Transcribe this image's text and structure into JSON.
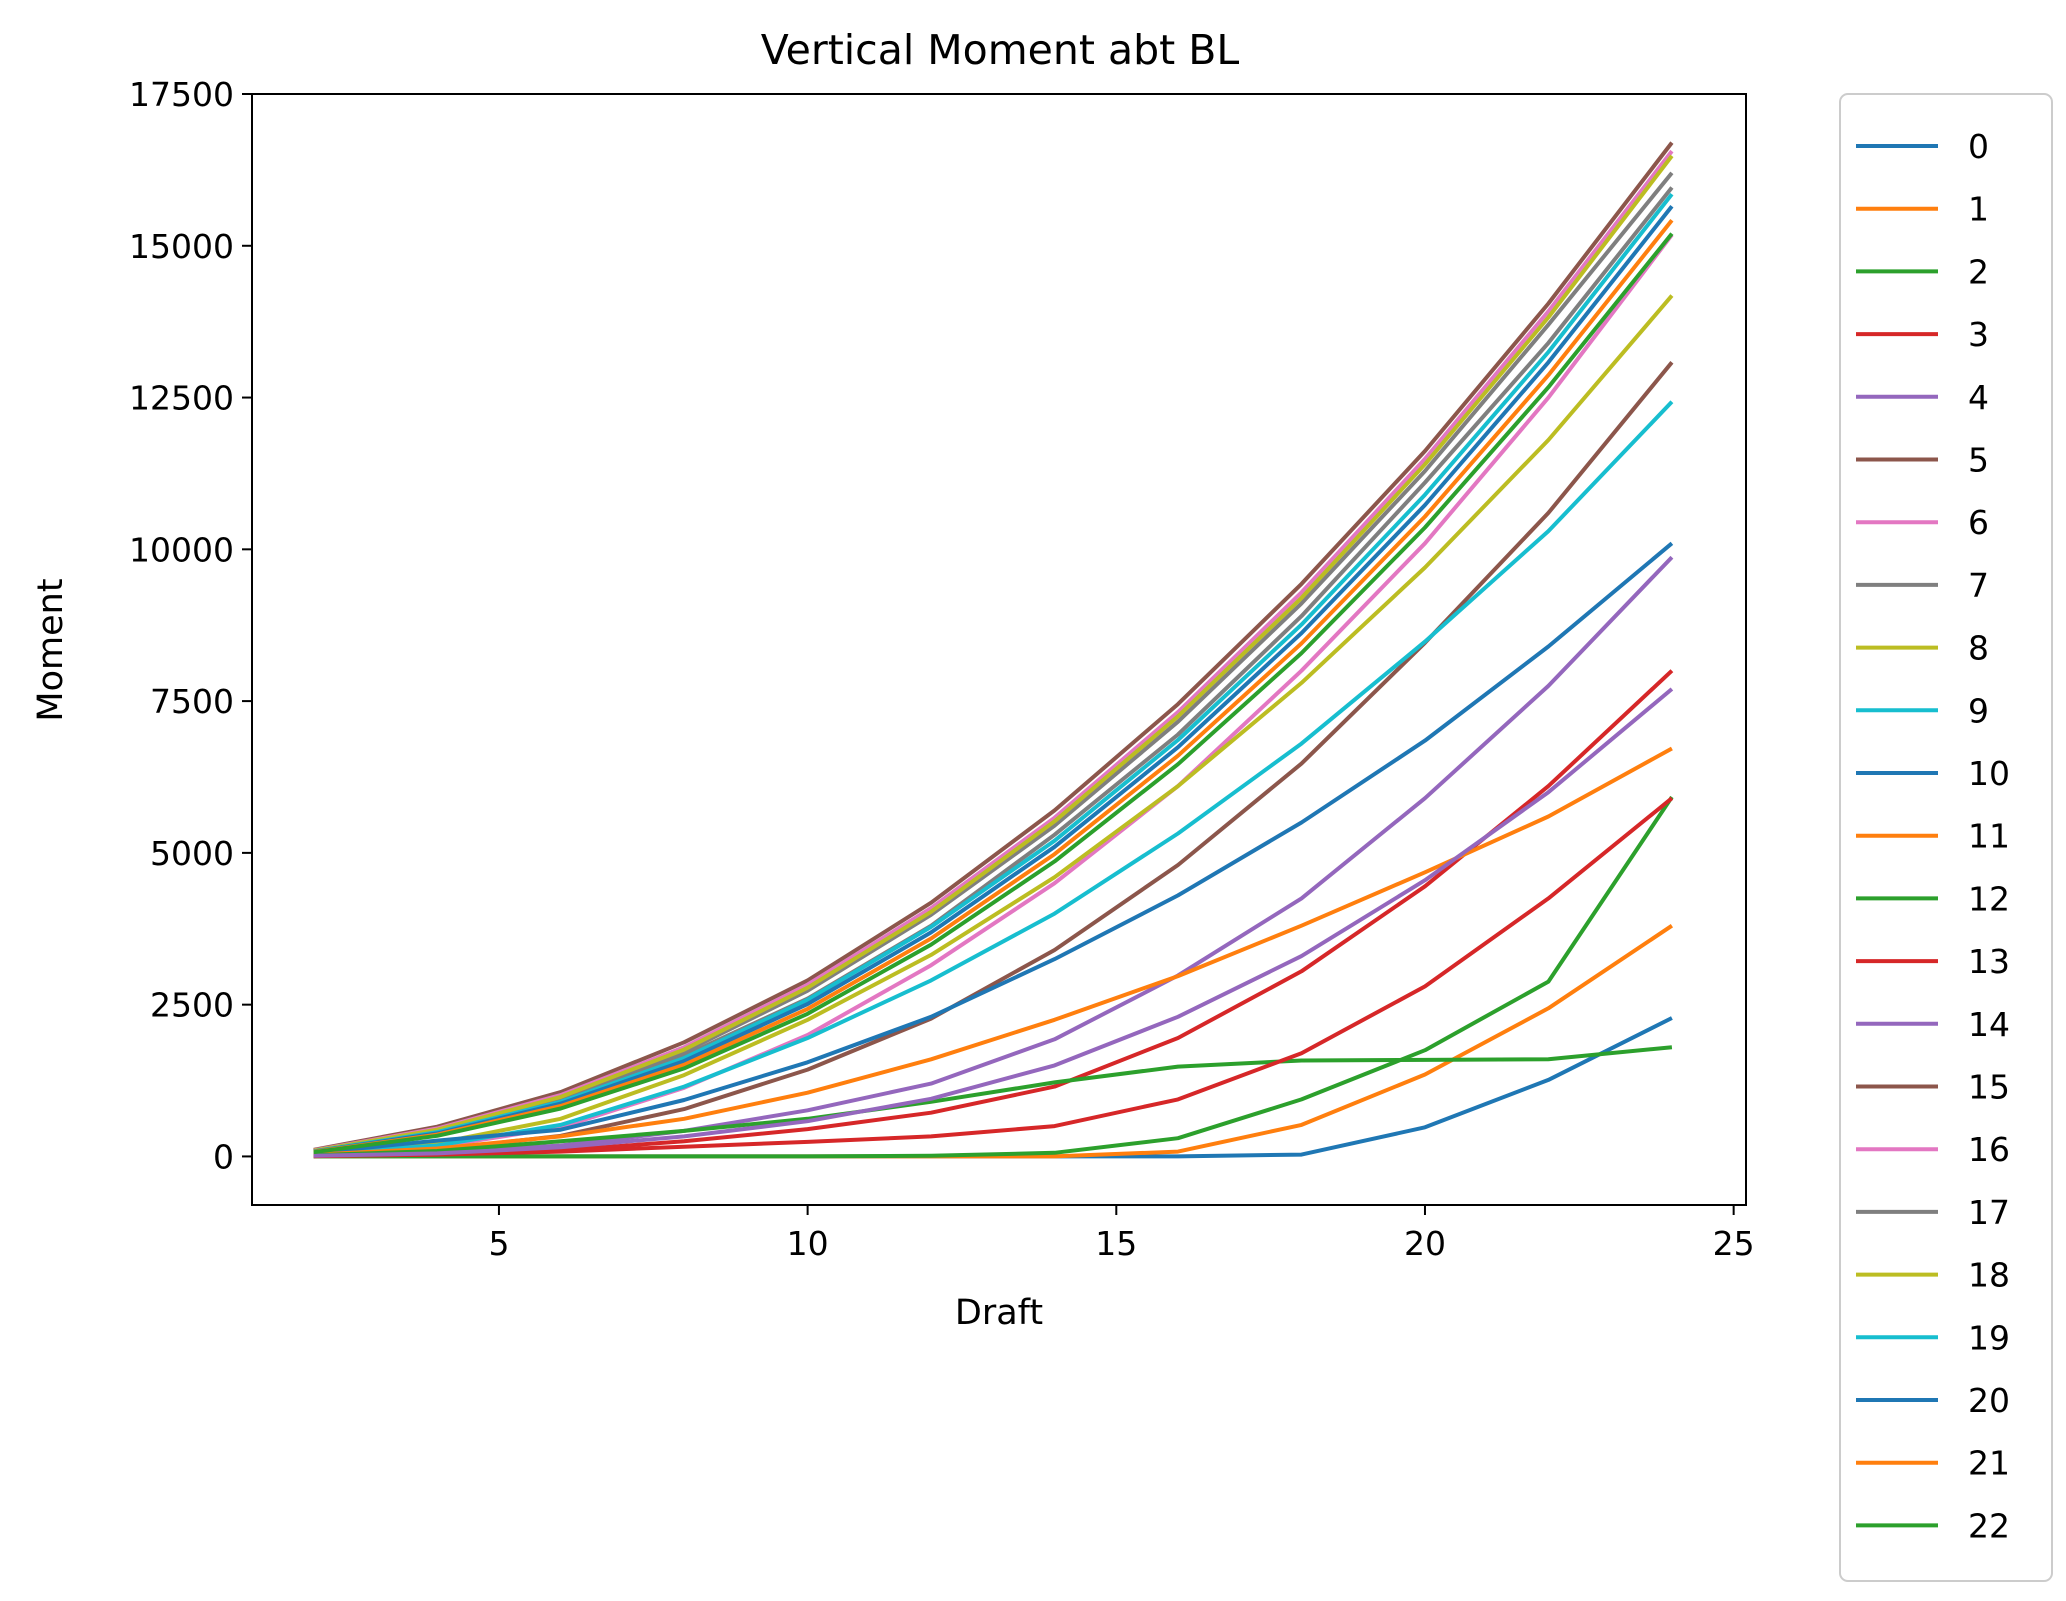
{
  "chart_data": {
    "type": "line",
    "title": "Vertical Moment abt BL",
    "xlabel": "Draft",
    "ylabel": "Moment",
    "xlim": [
      1,
      25.2
    ],
    "ylim": [
      -800,
      17500
    ],
    "xticks": [
      5,
      10,
      15,
      20,
      25
    ],
    "yticks": [
      0,
      2500,
      5000,
      7500,
      10000,
      12500,
      15000,
      17500
    ],
    "x": [
      2,
      4,
      6,
      8,
      10,
      12,
      14,
      16,
      18,
      20,
      22,
      24
    ],
    "grid": false,
    "legend_position": "outside-right",
    "series": [
      {
        "name": "0",
        "color": "#1f77b4",
        "values": [
          0,
          0,
          0,
          0,
          0,
          0,
          0,
          0,
          30,
          480,
          1260,
          2280
        ]
      },
      {
        "name": "1",
        "color": "#ff7f0e",
        "values": [
          0,
          0,
          0,
          0,
          0,
          0,
          0,
          80,
          520,
          1350,
          2440,
          3800
        ]
      },
      {
        "name": "2",
        "color": "#2ca02c",
        "values": [
          0,
          0,
          0,
          0,
          0,
          10,
          60,
          300,
          940,
          1750,
          2880,
          5920
        ]
      },
      {
        "name": "3",
        "color": "#d62728",
        "values": [
          5,
          30,
          100,
          250,
          450,
          720,
          1150,
          1950,
          3050,
          4450,
          6100,
          8000
        ]
      },
      {
        "name": "4",
        "color": "#9467bd",
        "values": [
          10,
          60,
          180,
          420,
          760,
          1200,
          1930,
          2980,
          4250,
          5900,
          7750,
          9870
        ]
      },
      {
        "name": "5",
        "color": "#8c564b",
        "values": [
          20,
          110,
          340,
          780,
          1430,
          2270,
          3400,
          4800,
          6470,
          8460,
          10600,
          13080
        ]
      },
      {
        "name": "6",
        "color": "#e377c2",
        "values": [
          30,
          160,
          480,
          1130,
          2000,
          3150,
          4500,
          6100,
          8000,
          10100,
          12500,
          15180
        ]
      },
      {
        "name": "7",
        "color": "#7f7f7f",
        "values": [
          90,
          420,
          960,
          1660,
          2600,
          3800,
          5300,
          6950,
          8900,
          11100,
          13400,
          15960
        ]
      },
      {
        "name": "8",
        "color": "#bcbd22",
        "values": [
          50,
          220,
          620,
          1340,
          2250,
          3320,
          4600,
          6100,
          7800,
          9700,
          11800,
          14180
        ]
      },
      {
        "name": "9",
        "color": "#17becf",
        "values": [
          40,
          180,
          520,
          1150,
          1950,
          2900,
          4000,
          5320,
          6800,
          8480,
          10300,
          12430
        ]
      },
      {
        "name": "10",
        "color": "#1f77b4",
        "values": [
          60,
          260,
          440,
          930,
          1550,
          2300,
          3250,
          4300,
          5500,
          6850,
          8400,
          10100
        ]
      },
      {
        "name": "11",
        "color": "#ff7f0e",
        "values": [
          30,
          130,
          330,
          620,
          1050,
          1600,
          2250,
          2970,
          3800,
          4680,
          5600,
          6720
        ]
      },
      {
        "name": "12",
        "color": "#2ca02c",
        "values": [
          20,
          90,
          250,
          420,
          620,
          900,
          1220,
          1480,
          1580,
          1590,
          1600,
          1800
        ]
      },
      {
        "name": "13",
        "color": "#d62728",
        "values": [
          5,
          30,
          80,
          160,
          240,
          330,
          500,
          940,
          1700,
          2800,
          4250,
          5900
        ]
      },
      {
        "name": "14",
        "color": "#9467bd",
        "values": [
          10,
          50,
          150,
          330,
          580,
          950,
          1500,
          2300,
          3300,
          4550,
          6000,
          7700
        ]
      },
      {
        "name": "15",
        "color": "#8c564b",
        "values": [
          110,
          490,
          1060,
          1880,
          2900,
          4180,
          5700,
          7450,
          9430,
          11620,
          14050,
          16700
        ]
      },
      {
        "name": "16",
        "color": "#e377c2",
        "values": [
          100,
          460,
          1010,
          1800,
          2830,
          4090,
          5580,
          7320,
          9290,
          11490,
          13920,
          16560
        ]
      },
      {
        "name": "17",
        "color": "#7f7f7f",
        "values": [
          90,
          430,
          960,
          1720,
          2730,
          3980,
          5450,
          7160,
          9110,
          11290,
          13700,
          16200
        ]
      },
      {
        "name": "18",
        "color": "#bcbd22",
        "values": [
          95,
          440,
          980,
          1760,
          2780,
          4030,
          5520,
          7250,
          9200,
          11400,
          13820,
          16480
        ]
      },
      {
        "name": "19",
        "color": "#17becf",
        "values": [
          85,
          400,
          900,
          1620,
          2580,
          3780,
          5200,
          6860,
          8760,
          10900,
          13250,
          15850
        ]
      },
      {
        "name": "20",
        "color": "#1f77b4",
        "values": [
          80,
          380,
          870,
          1570,
          2510,
          3690,
          5100,
          6740,
          8620,
          10730,
          13080,
          15650
        ]
      },
      {
        "name": "21",
        "color": "#ff7f0e",
        "values": [
          75,
          360,
          830,
          1510,
          2430,
          3590,
          4980,
          6600,
          8450,
          10540,
          12870,
          15420
        ]
      },
      {
        "name": "22",
        "color": "#2ca02c",
        "values": [
          70,
          340,
          790,
          1450,
          2350,
          3490,
          4860,
          6460,
          8290,
          10360,
          12670,
          15200
        ]
      }
    ]
  }
}
